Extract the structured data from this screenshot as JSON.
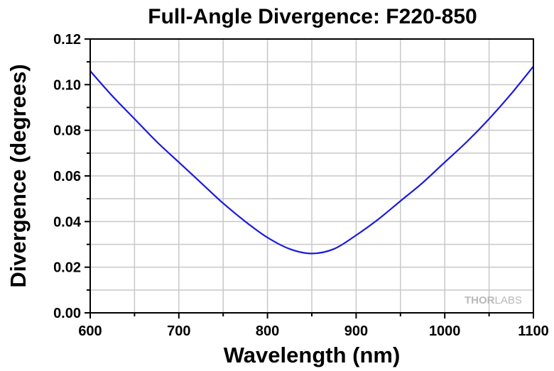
{
  "chart_data": {
    "type": "line",
    "title": "Full-Angle Divergence: F220-850",
    "xlabel": "Wavelength (nm)",
    "ylabel": "Divergence (degrees)",
    "xlim": [
      600,
      1100
    ],
    "ylim": [
      0,
      0.12
    ],
    "xticks": [
      "600",
      "700",
      "800",
      "900",
      "1000",
      "1100"
    ],
    "yticks": [
      "0.00",
      "0.02",
      "0.04",
      "0.06",
      "0.08",
      "0.10",
      "0.12"
    ],
    "grid": true,
    "line_color": "#1a1adb",
    "grid_color": "#c8c8c8",
    "watermark": {
      "text_a": "THOR",
      "text_b": "LABS"
    },
    "series": [
      {
        "x": [
          600,
          625,
          650,
          675,
          700,
          725,
          750,
          775,
          800,
          825,
          850,
          875,
          900,
          925,
          950,
          975,
          1000,
          1025,
          1050,
          1075,
          1100
        ],
        "y": [
          0.106,
          0.095,
          0.085,
          0.075,
          0.066,
          0.057,
          0.048,
          0.04,
          0.033,
          0.028,
          0.026,
          0.028,
          0.034,
          0.041,
          0.049,
          0.057,
          0.066,
          0.075,
          0.085,
          0.096,
          0.108
        ]
      }
    ]
  }
}
